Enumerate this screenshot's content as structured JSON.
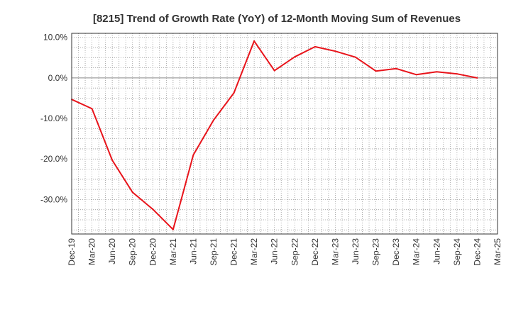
{
  "chart_data": {
    "type": "line",
    "title": "[8215]  Trend of Growth Rate (YoY) of 12-Month Moving Sum of Revenues",
    "xlabel": "",
    "ylabel": "",
    "x_ticks": [
      "Dec-19",
      "Mar-20",
      "Jun-20",
      "Sep-20",
      "Dec-20",
      "Mar-21",
      "Jun-21",
      "Sep-21",
      "Dec-21",
      "Mar-22",
      "Jun-22",
      "Sep-22",
      "Dec-22",
      "Mar-23",
      "Jun-23",
      "Sep-23",
      "Dec-23",
      "Mar-24",
      "Jun-24",
      "Sep-24",
      "Dec-24",
      "Mar-25"
    ],
    "y_ticks": [
      "10.0%",
      "0.0%",
      "-10.0%",
      "-20.0%",
      "-30.0%"
    ],
    "y_tick_values": [
      10,
      0,
      -10,
      -20,
      -30
    ],
    "ylim": [
      -38.5,
      11
    ],
    "grid": true,
    "series": [
      {
        "color": "#e8141b",
        "x": [
          "Dec-19",
          "Mar-20",
          "Jun-20",
          "Sep-20",
          "Dec-20",
          "Mar-21",
          "Jun-21",
          "Sep-21",
          "Dec-21",
          "Mar-22",
          "Jun-22",
          "Sep-22",
          "Dec-22",
          "Mar-23",
          "Jun-23",
          "Sep-23",
          "Dec-23",
          "Mar-24",
          "Jun-24",
          "Sep-24",
          "Dec-24"
        ],
        "values": [
          -5.3,
          -7.6,
          -20.3,
          -28.2,
          -32.4,
          -37.4,
          -19.0,
          -10.4,
          -3.7,
          9.1,
          1.8,
          5.2,
          7.7,
          6.6,
          5.1,
          1.7,
          2.3,
          0.8,
          1.5,
          1.0,
          0.0
        ]
      }
    ]
  },
  "colors": {
    "line": "#e8141b",
    "grid": "#999999",
    "axis": "#333333",
    "zero_line": "#888888"
  }
}
